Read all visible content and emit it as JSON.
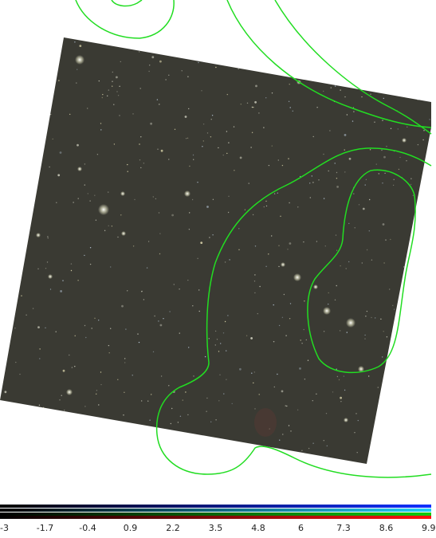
{
  "viewer": {
    "contour_color": "#22dd22",
    "frame_color": "#3a3a33"
  },
  "colorbar": {
    "gradients": [
      {
        "name": "blue-channel",
        "color": "#1030ff"
      },
      {
        "name": "cyan-channel",
        "color": "#20d0ff"
      },
      {
        "name": "green-channel",
        "color": "#10cc10"
      },
      {
        "name": "red-channel",
        "color": "#ff1010"
      }
    ],
    "ticks": [
      "-3",
      "-1.7",
      "-0.4",
      "0.9",
      "2.2",
      "3.5",
      "4.8",
      "6",
      "7.3",
      "8.6",
      "9.9"
    ]
  }
}
